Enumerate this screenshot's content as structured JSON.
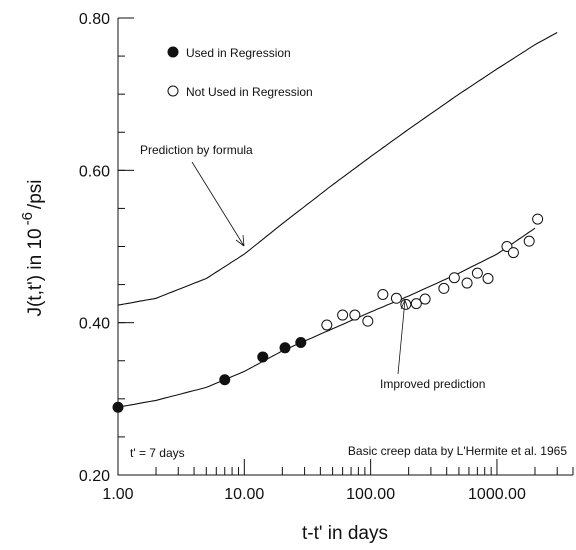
{
  "chart_data": {
    "type": "scatter",
    "title": "",
    "xlabel": "t-t' in days",
    "ylabel": {
      "prefix": "J(t,t') in 10",
      "exponent": "-6",
      "suffix": "/psi"
    },
    "x_scale": "log",
    "xlim": [
      1,
      4000
    ],
    "ylim": [
      0.2,
      0.8
    ],
    "grid": false,
    "x_tick_labels": [
      "1.00",
      "10.00",
      "100.00",
      "1000.00"
    ],
    "x_tick_values": [
      1,
      10,
      100,
      1000
    ],
    "y_tick_labels": [
      "0.20",
      "0.40",
      "0.60",
      "0.80"
    ],
    "y_tick_values": [
      0.2,
      0.4,
      0.6,
      0.8
    ],
    "legend_position": "top-left",
    "series": [
      {
        "name": "Used in Regression",
        "kind": "points",
        "marker": "filled-circle",
        "x": [
          1,
          7,
          14,
          21,
          28
        ],
        "y": [
          0.289,
          0.325,
          0.355,
          0.367,
          0.374
        ]
      },
      {
        "name": "Not Used in Regression",
        "kind": "points",
        "marker": "open-circle",
        "x": [
          45,
          60,
          75,
          95,
          125,
          160,
          190,
          230,
          270,
          380,
          460,
          580,
          700,
          850,
          1200,
          1350,
          1800,
          2100
        ],
        "y": [
          0.397,
          0.41,
          0.41,
          0.402,
          0.437,
          0.432,
          0.424,
          0.425,
          0.431,
          0.445,
          0.459,
          0.452,
          0.465,
          0.458,
          0.5,
          0.492,
          0.507,
          0.536
        ]
      },
      {
        "name": "Prediction by formula",
        "kind": "line",
        "x": [
          1,
          2,
          5,
          10,
          20,
          50,
          100,
          200,
          500,
          1000,
          2000,
          3000
        ],
        "y": [
          0.423,
          0.432,
          0.458,
          0.49,
          0.53,
          0.581,
          0.618,
          0.654,
          0.7,
          0.733,
          0.765,
          0.781
        ]
      },
      {
        "name": "Improved prediction",
        "kind": "line",
        "x": [
          1,
          2,
          5,
          10,
          20,
          50,
          100,
          200,
          500,
          1000,
          2000
        ],
        "y": [
          0.289,
          0.298,
          0.315,
          0.336,
          0.363,
          0.392,
          0.414,
          0.435,
          0.465,
          0.49,
          0.524
        ]
      }
    ],
    "annotations": [
      {
        "text": "Prediction by formula",
        "x": 10.7,
        "y": 0.494
      },
      {
        "text": "Improved prediction",
        "x": 150,
        "y": 0.425
      }
    ],
    "notes": {
      "left": "t' = 7 days",
      "right": "Basic creep data by L'Hermite et al. 1965"
    }
  }
}
